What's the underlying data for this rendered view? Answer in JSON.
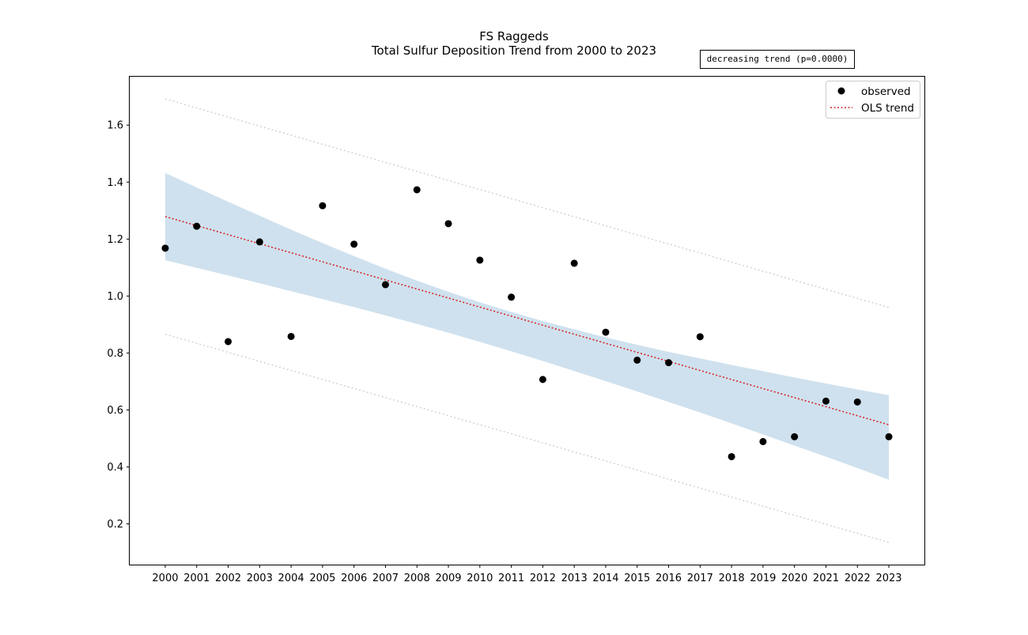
{
  "chart_data": {
    "type": "scatter",
    "title": "FS Raggeds",
    "subtitle": "Total Sulfur Deposition Trend from 2000 to 2023",
    "annotation": "decreasing trend (p=0.0000)",
    "x": [
      2000,
      2001,
      2002,
      2003,
      2004,
      2005,
      2006,
      2007,
      2008,
      2009,
      2010,
      2011,
      2012,
      2013,
      2014,
      2015,
      2016,
      2017,
      2018,
      2019,
      2020,
      2021,
      2022,
      2023
    ],
    "series": [
      {
        "name": "observed",
        "kind": "points",
        "color": "#000000",
        "values": [
          1.168,
          1.245,
          0.84,
          1.19,
          0.858,
          1.317,
          1.182,
          1.04,
          1.373,
          1.254,
          1.126,
          0.996,
          0.707,
          1.115,
          0.873,
          0.775,
          0.766,
          0.857,
          0.436,
          0.489,
          0.506,
          0.631,
          0.628,
          0.506
        ]
      },
      {
        "name": "OLS trend",
        "kind": "line",
        "style": "dotted",
        "color": "#d62728",
        "start": 1.279,
        "end": 0.548
      }
    ],
    "confidence_band": {
      "color": "#cfe1ee",
      "lower": [
        1.126,
        1.099,
        1.072,
        1.045,
        1.017,
        0.989,
        0.961,
        0.932,
        0.902,
        0.871,
        0.839,
        0.806,
        0.772,
        0.737,
        0.701,
        0.665,
        0.628,
        0.591,
        0.553,
        0.514,
        0.475,
        0.436,
        0.396,
        0.355
      ],
      "upper": [
        1.432,
        1.381,
        1.331,
        1.282,
        1.233,
        1.186,
        1.14,
        1.096,
        1.054,
        1.015,
        0.978,
        0.944,
        0.912,
        0.883,
        0.855,
        0.829,
        0.804,
        0.781,
        0.758,
        0.736,
        0.714,
        0.693,
        0.672,
        0.652
      ]
    },
    "prediction_band": {
      "color": "#d3d3d3",
      "style": "dotted",
      "upper_start": 1.692,
      "upper_end": 0.96,
      "lower_start": 0.866,
      "lower_end": 0.135
    },
    "xlabel": "",
    "ylabel": "",
    "xlim": [
      1998.87,
      2024.13
    ],
    "ylim": [
      0.057,
      1.77
    ],
    "yticks": [
      0.2,
      0.4,
      0.6,
      0.8,
      1.0,
      1.2,
      1.4,
      1.6
    ],
    "grid": false,
    "legend_position": "top-right"
  }
}
